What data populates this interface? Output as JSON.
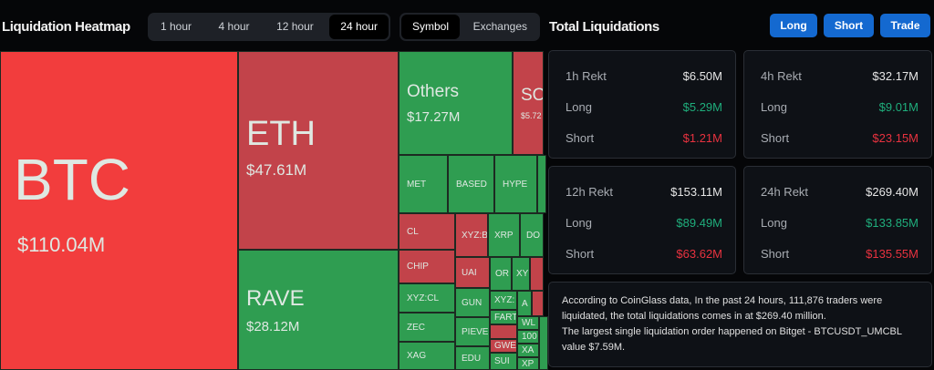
{
  "heatmap": {
    "title": "Liquidation Heatmap",
    "time_tabs": [
      "1 hour",
      "4 hour",
      "12 hour",
      "24 hour"
    ],
    "active_time": "24 hour",
    "view_tabs": [
      "Symbol",
      "Exchanges"
    ],
    "active_view": "Symbol",
    "tiles": [
      {
        "symbol": "BTC",
        "value": "$110.04M",
        "side": "short"
      },
      {
        "symbol": "ETH",
        "value": "$47.61M",
        "side": "short"
      },
      {
        "symbol": "RAVE",
        "value": "$28.12M",
        "side": "long"
      },
      {
        "symbol": "Others",
        "value": "$17.27M",
        "side": "long"
      },
      {
        "symbol": "SO",
        "value": "$5.72",
        "side": "short"
      },
      {
        "symbol": "MET"
      },
      {
        "symbol": "BASED"
      },
      {
        "symbol": "HYPE"
      },
      {
        "symbol": "CL"
      },
      {
        "symbol": "CHIP"
      },
      {
        "symbol": "XYZ:CL"
      },
      {
        "symbol": "ZEC"
      },
      {
        "symbol": "XAG"
      },
      {
        "symbol": "XYZ:B"
      },
      {
        "symbol": "UAI"
      },
      {
        "symbol": "GUN"
      },
      {
        "symbol": "PIEVE"
      },
      {
        "symbol": "EDU"
      },
      {
        "symbol": "XRP"
      },
      {
        "symbol": "DO"
      },
      {
        "symbol": "OR"
      },
      {
        "symbol": "XY"
      },
      {
        "symbol": "XYZ:"
      },
      {
        "symbol": "A"
      },
      {
        "symbol": "FART"
      },
      {
        "symbol": "GWE"
      },
      {
        "symbol": "SUI"
      },
      {
        "symbol": "WL"
      },
      {
        "symbol": "100"
      },
      {
        "symbol": "XA"
      },
      {
        "symbol": "XP"
      }
    ]
  },
  "totals": {
    "title": "Total Liquidations",
    "buttons": [
      "Long",
      "Short",
      "Trade"
    ],
    "cards": [
      {
        "label": "1h Rekt",
        "total": "$6.50M",
        "long": "$5.29M",
        "short": "$1.21M"
      },
      {
        "label": "4h Rekt",
        "total": "$32.17M",
        "long": "$9.01M",
        "short": "$23.15M"
      },
      {
        "label": "12h Rekt",
        "total": "$153.11M",
        "long": "$89.49M",
        "short": "$63.62M"
      },
      {
        "label": "24h Rekt",
        "total": "$269.40M",
        "long": "$133.85M",
        "short": "$135.55M"
      }
    ],
    "long_label": "Long",
    "short_label": "Short",
    "summary": [
      "According to CoinGlass data, In the past 24 hours, 111,876 traders were liquidated, the total liquidations comes in at $269.40 million.",
      "The largest single liquidation order happened on Bitget - BTCUSDT_UMCBL value $7.59M."
    ]
  },
  "colors": {
    "long": "#2f9d51",
    "short": "#c2434a",
    "btc": "#f23d3d",
    "button": "#1469d0",
    "long_text": "#1fae7c",
    "short_text": "#e8323f"
  }
}
